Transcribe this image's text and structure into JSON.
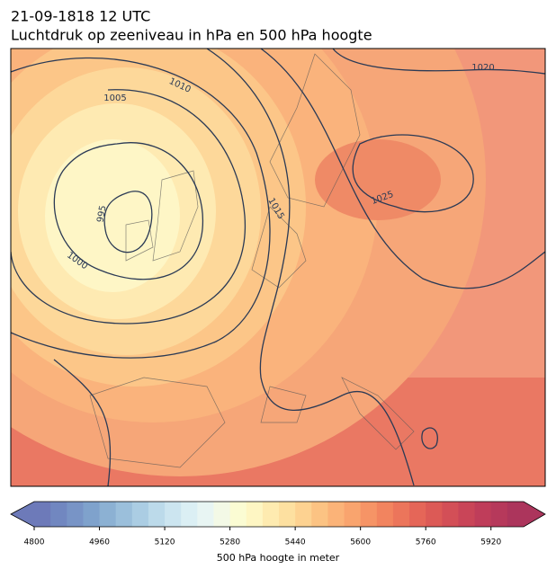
{
  "title_lines": [
    "21-09-1818 12 UTC",
    "Luchtdruk op zeeniveau in hPa en 500 hPa hoogte"
  ],
  "contour_labels": [
    995,
    1000,
    1005,
    1010,
    1015,
    1020,
    1025
  ],
  "colorbar": {
    "label": "500 hPa hoogte in meter",
    "range": [
      4800,
      6000
    ],
    "ticks": [
      4800,
      4960,
      5120,
      5280,
      5440,
      5600,
      5760,
      5920
    ],
    "colors": [
      "#6d7ab9",
      "#7187c0",
      "#7894c6",
      "#7fa2cc",
      "#8cb1d3",
      "#9bbfdb",
      "#abcde3",
      "#bcdaea",
      "#cce5f0",
      "#dbeff4",
      "#e8f5f3",
      "#f3f9e6",
      "#fbfcd3",
      "#fef6c3",
      "#feebb0",
      "#fde0a0",
      "#fdd291",
      "#fcc383",
      "#fbb378",
      "#f9a46e",
      "#f69466",
      "#f2845f",
      "#ec755b",
      "#e56658",
      "#dc5a56",
      "#d34f57",
      "#c94558",
      "#bf3d5a",
      "#b6395b",
      "#ac355c"
    ]
  }
}
